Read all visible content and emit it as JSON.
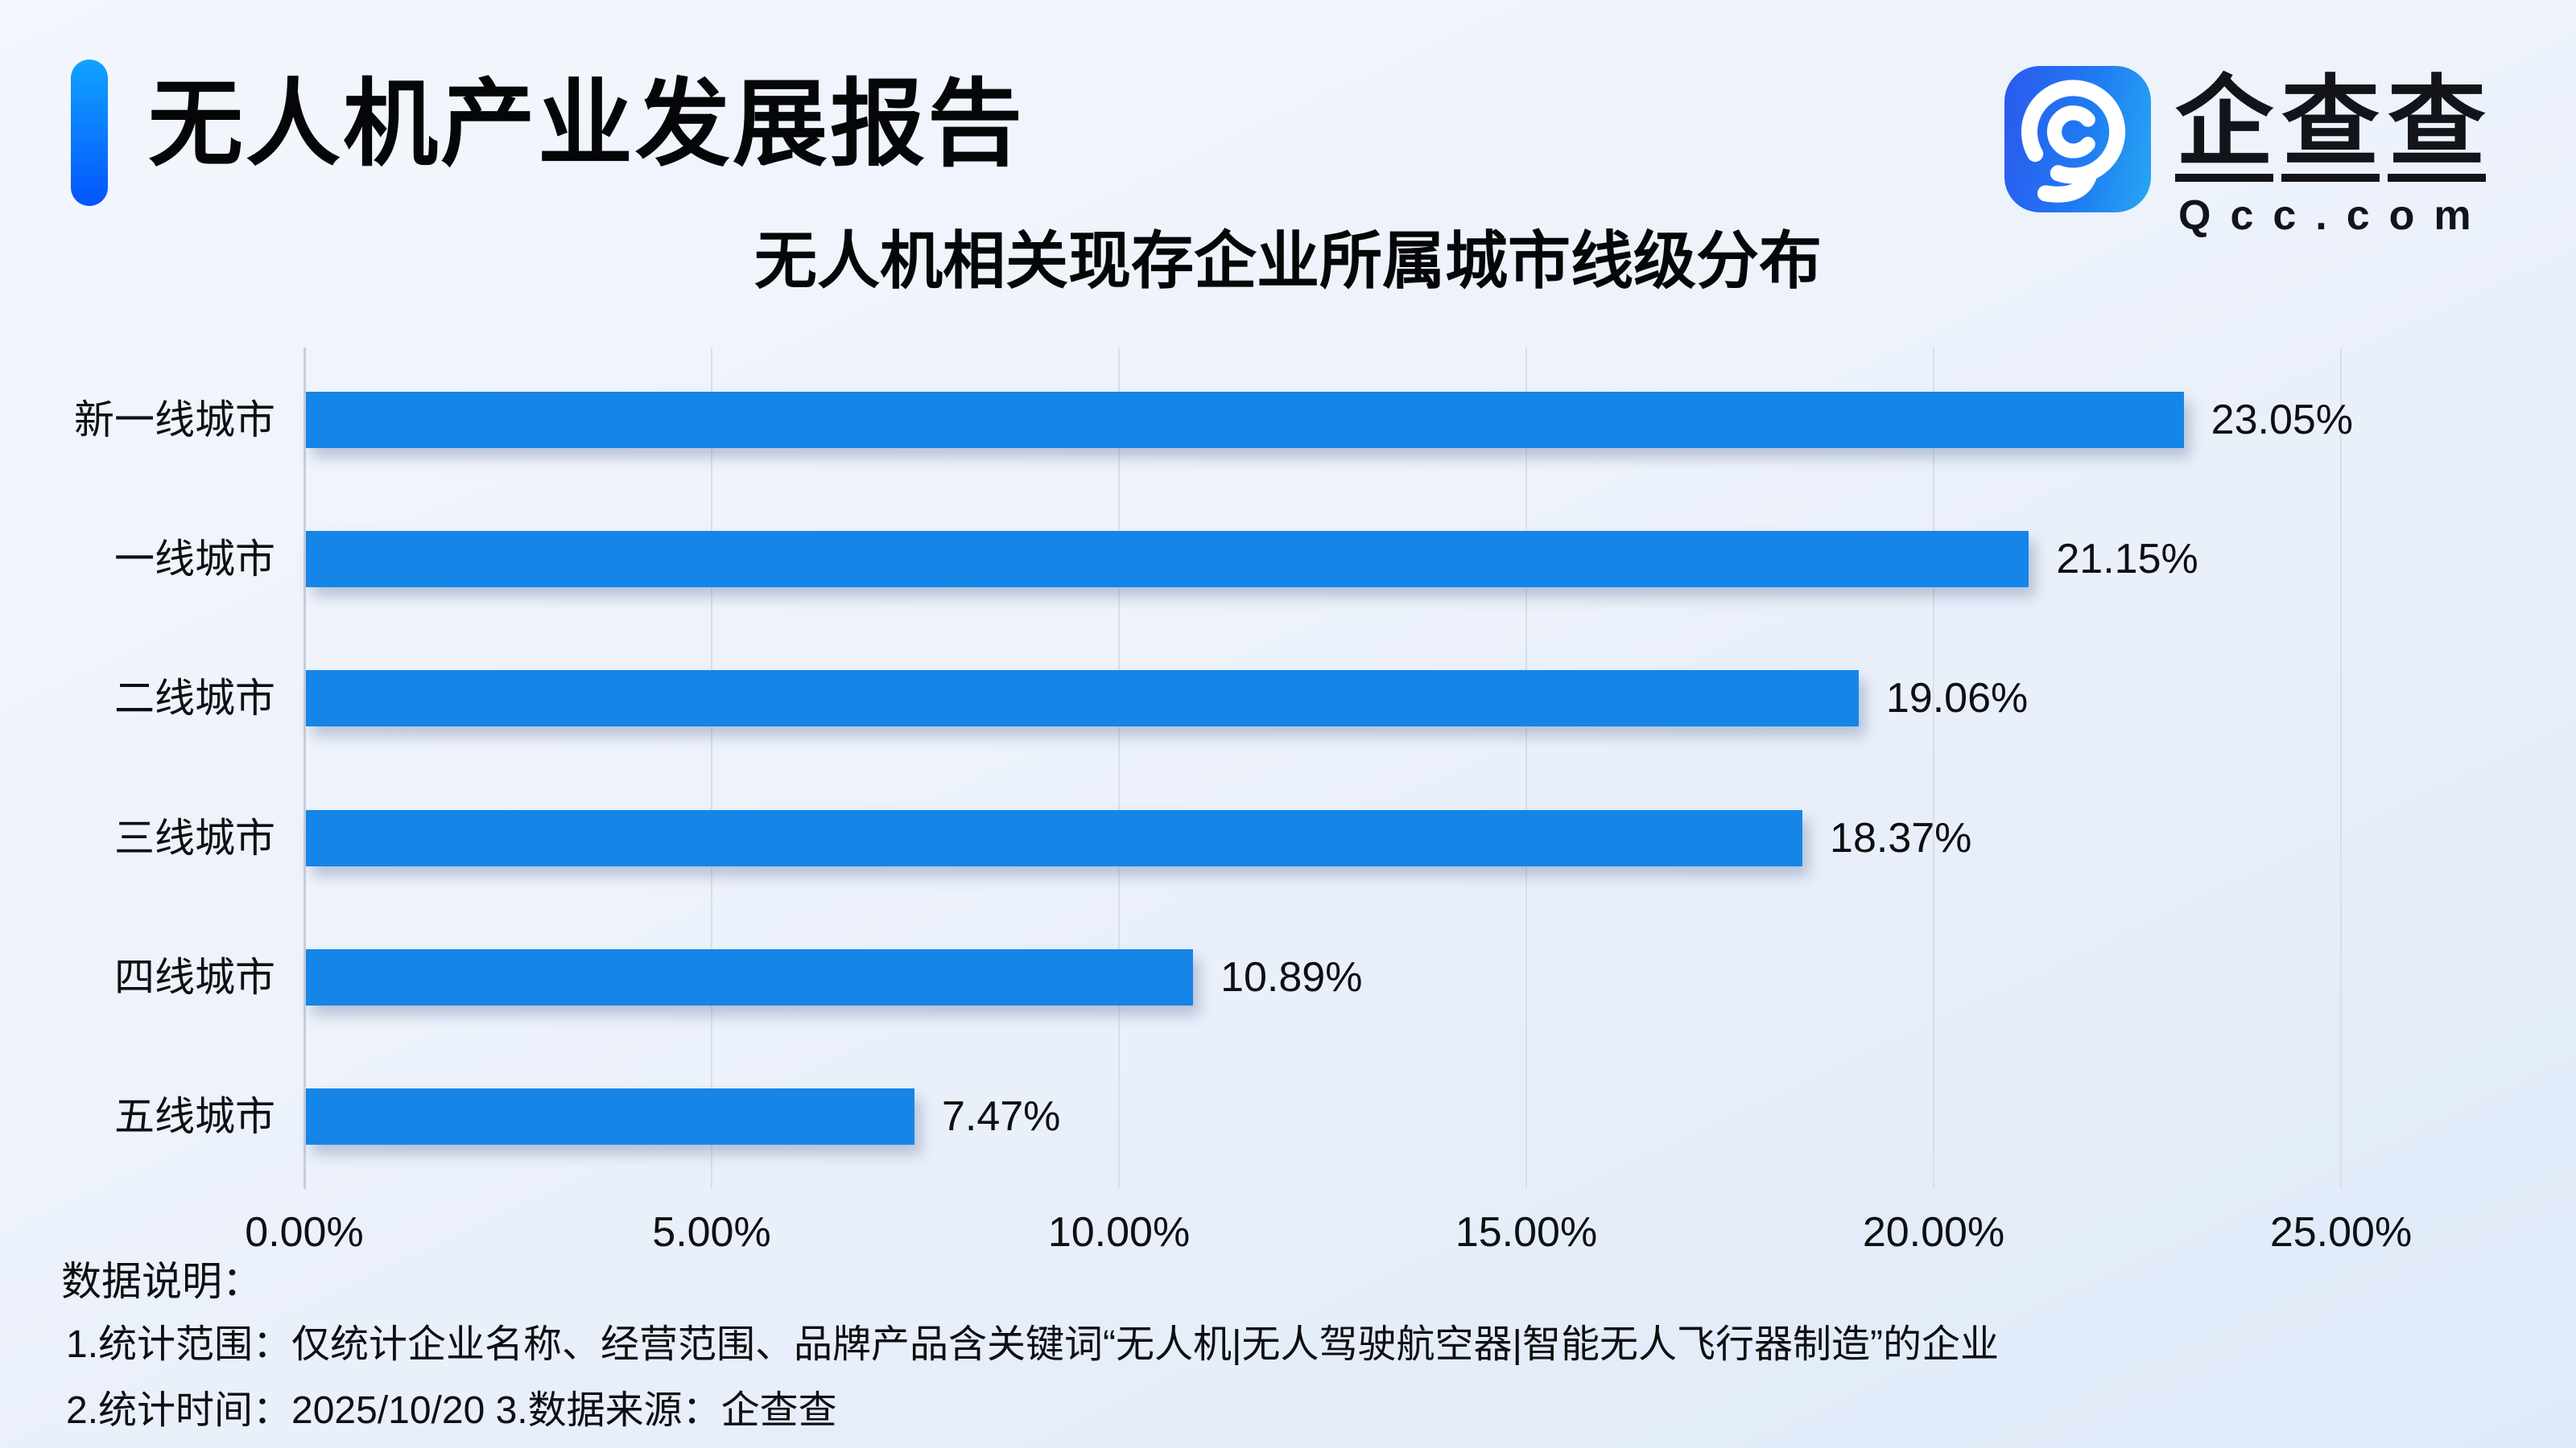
{
  "header": {
    "report_title": "无人机产业发展报告",
    "logo": {
      "icon": "qcc-magnifier-icon",
      "wordmark_chars": [
        "企",
        "查",
        "查"
      ],
      "domain": "Qcc.com"
    }
  },
  "chart_data": {
    "type": "bar",
    "orientation": "horizontal",
    "title": "无人机相关现存企业所属城市线级分布",
    "categories": [
      "新一线城市",
      "一线城市",
      "二线城市",
      "三线城市",
      "四线城市",
      "五线城市"
    ],
    "values": [
      23.05,
      21.15,
      19.06,
      18.37,
      10.89,
      7.47
    ],
    "value_labels": [
      "23.05%",
      "21.15%",
      "19.06%",
      "18.37%",
      "10.89%",
      "7.47%"
    ],
    "x_tick_values": [
      0,
      5,
      10,
      15,
      20,
      25
    ],
    "x_tick_labels": [
      "0.00%",
      "5.00%",
      "10.00%",
      "15.00%",
      "20.00%",
      "25.00%"
    ],
    "xlim": [
      0,
      25
    ],
    "grid": true,
    "legend": "none",
    "bar_color": "#1585E8"
  },
  "notes": {
    "heading": "数据说明：",
    "line1": "1.统计范围：仅统计企业名称、经营范围、品牌产品含关键词“无人机|无人驾驶航空器|智能无人飞行器制造”的企业",
    "line2": "2.统计时间：2025/10/20 3.数据来源：企查查"
  },
  "colors": {
    "bar": "#1585E8",
    "accent_gradient_top": "#12A2FF",
    "accent_gradient_bottom": "#0355FE",
    "logo_gradient_left": "#2C58EE",
    "logo_gradient_right": "#27A7F3",
    "gridline": "#D9DEE8",
    "text": "#0E0F12",
    "background_top": "#F3F6FC",
    "background_bottom": "#DFE9F8"
  }
}
